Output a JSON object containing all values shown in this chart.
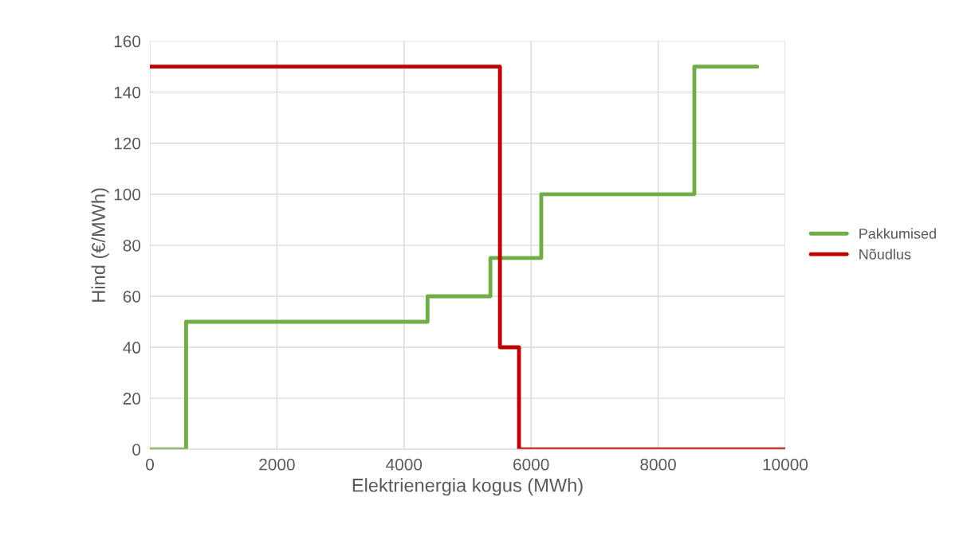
{
  "chart_data": {
    "type": "line",
    "xlabel": "Elektrienergia kogus (MWh)",
    "ylabel": "Hind (€/MWh)",
    "series": [
      {
        "name": "Pakkumised",
        "color": "#70ad47",
        "x": [
          0,
          570,
          570,
          4370,
          4370,
          5360,
          5360,
          6160,
          6160,
          8570,
          8570,
          9560
        ],
        "values": [
          0,
          0,
          50,
          50,
          60,
          60,
          75,
          75,
          100,
          100,
          150,
          150
        ]
      },
      {
        "name": "Nõudlus",
        "color": "#c00000",
        "x": [
          0,
          5510,
          5510,
          5810,
          5810,
          10000
        ],
        "values": [
          150,
          150,
          40,
          40,
          0,
          0
        ]
      }
    ],
    "xlim": [
      0,
      10000
    ],
    "xticks": [
      0,
      2000,
      4000,
      6000,
      8000,
      10000
    ],
    "ylim": [
      0,
      160
    ],
    "yticks": [
      0,
      20,
      40,
      60,
      80,
      100,
      120,
      140,
      160
    ],
    "grid": true,
    "legend": "right",
    "marker": "none",
    "line_style": "solid"
  }
}
